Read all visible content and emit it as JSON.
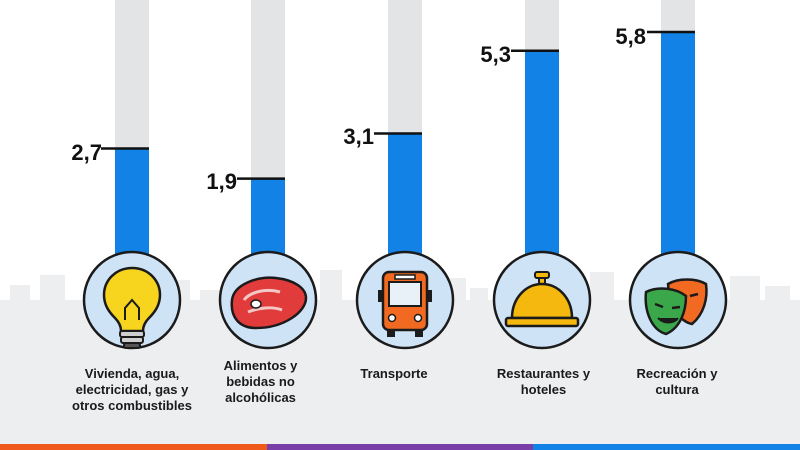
{
  "colors": {
    "bar_fill": "#1382e6",
    "bar_track": "#e3e4e6",
    "icon_circle": "#cfe3f7",
    "icon_ring": "#1b1b1b",
    "skyline": "#eceeef",
    "strip": [
      "#f0591c",
      "#7a3ea8",
      "#1382e6"
    ]
  },
  "chart_data": {
    "type": "bar",
    "categories": [
      "Vivienda, agua, electricidad, gas y otros combustibles",
      "Alimentos y bebidas no alcohólicas",
      "Transporte",
      "Restaurantes y hoteles",
      "Recreación y cultura"
    ],
    "value_labels": [
      "2,7",
      "1,9",
      "3,1",
      "5,3",
      "5,8"
    ],
    "values": [
      2.7,
      1.9,
      3.1,
      5.3,
      5.8
    ],
    "ylim": [
      0,
      6.65
    ],
    "icons": [
      "lightbulb-icon",
      "meat-icon",
      "bus-icon",
      "service-bell-icon",
      "theater-masks-icon"
    ]
  }
}
